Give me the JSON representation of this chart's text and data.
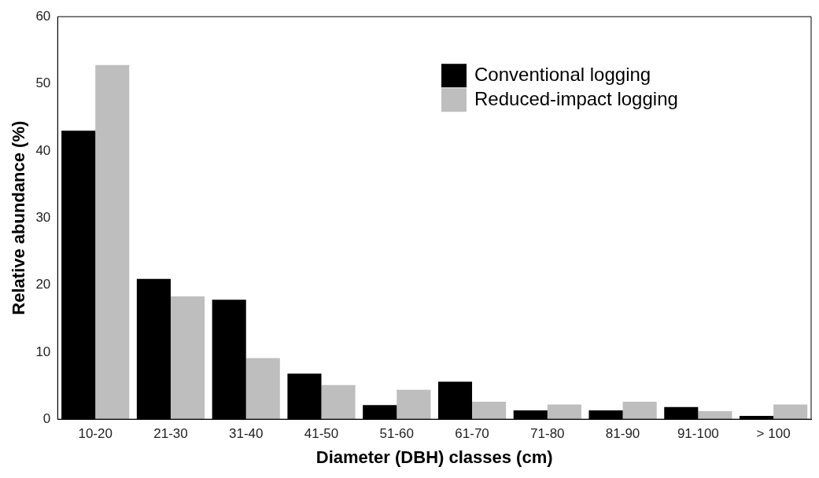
{
  "chart_data": {
    "type": "bar",
    "xlabel": "Diameter (DBH) classes (cm)",
    "ylabel": "Relative abundance (%)",
    "categories": [
      "10-20",
      "21-30",
      "31-40",
      "41-50",
      "51-60",
      "61-70",
      "71-80",
      "81-90",
      "91-100",
      "> 100"
    ],
    "series": [
      {
        "name": "Conventional logging",
        "color": "#000000",
        "values": [
          43,
          20.9,
          17.8,
          6.8,
          2.1,
          5.6,
          1.3,
          1.3,
          1.8,
          0.5
        ]
      },
      {
        "name": "Reduced-impact logging",
        "color": "#bebebe",
        "values": [
          52.8,
          18.3,
          9.1,
          5.1,
          4.4,
          2.6,
          2.2,
          2.6,
          1.2,
          2.2
        ]
      }
    ],
    "ylim": [
      0,
      60
    ],
    "yticks": [
      0,
      10,
      20,
      30,
      40,
      50,
      60
    ],
    "grid": false,
    "legend": "top right"
  }
}
